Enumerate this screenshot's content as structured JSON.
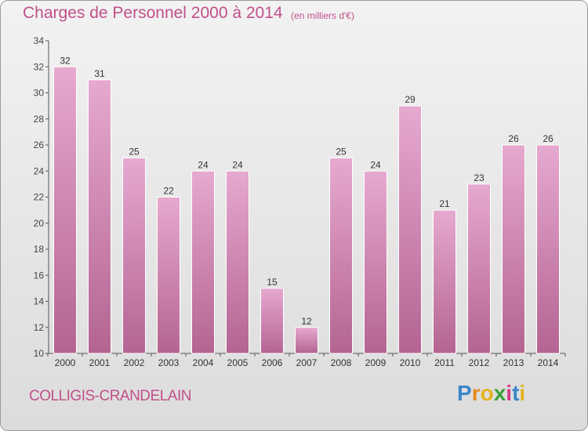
{
  "header": {
    "title": "Charges de Personnel 2000 à 2014",
    "subtitle": "(en milliers d'€)"
  },
  "footer": {
    "commune": "COLLIGIS-CRANDELAIN",
    "brand": "Proxiti"
  },
  "colors": {
    "accent": "#c0508a",
    "bar_top": "#e6a9cf",
    "bar_bottom": "#b46491"
  },
  "chart_data": {
    "type": "bar",
    "categories": [
      "2000",
      "2001",
      "2002",
      "2003",
      "2004",
      "2005",
      "2006",
      "2007",
      "2008",
      "2009",
      "2010",
      "2011",
      "2012",
      "2013",
      "2014"
    ],
    "values": [
      32,
      31,
      25,
      22,
      24,
      24,
      15,
      12,
      25,
      24,
      29,
      21,
      23,
      26,
      26
    ],
    "title": "Charges de Personnel 2000 à 2014",
    "subtitle": "(en milliers d'€)",
    "ylim": [
      10,
      34
    ],
    "yticks": [
      10,
      12,
      14,
      16,
      18,
      20,
      22,
      24,
      26,
      28,
      30,
      32,
      34
    ],
    "grid": false,
    "data_labels": true
  }
}
